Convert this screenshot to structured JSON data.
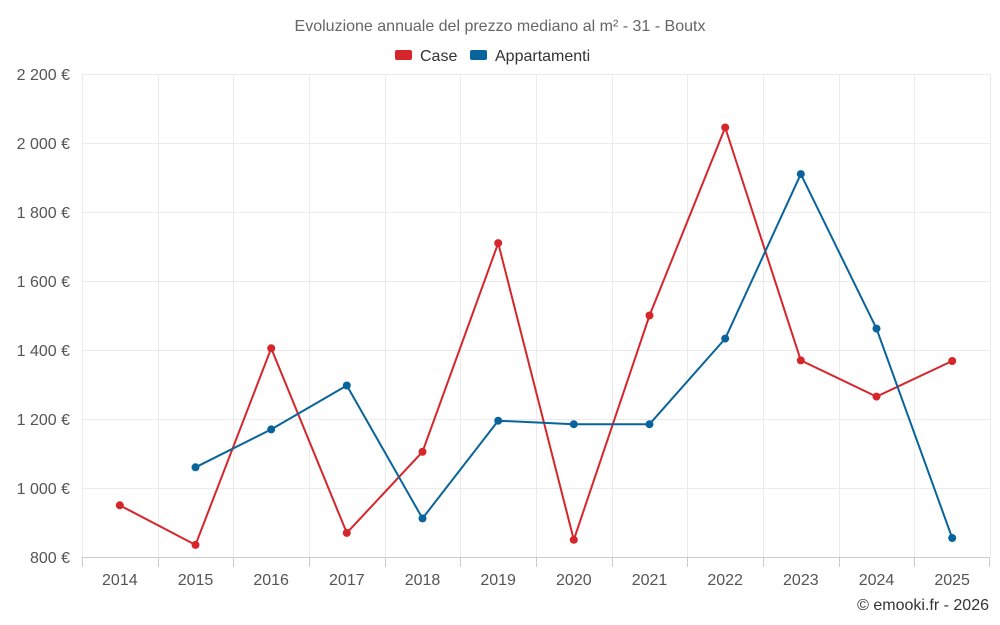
{
  "chart_data": {
    "type": "line",
    "title": "Evoluzione annuale del prezzo mediano al m² - 31 - Boutx",
    "categories": [
      "2014",
      "2015",
      "2016",
      "2017",
      "2018",
      "2019",
      "2020",
      "2021",
      "2022",
      "2023",
      "2024",
      "2025"
    ],
    "y_ticks": [
      800,
      1000,
      1200,
      1400,
      1600,
      1800,
      2000,
      2200
    ],
    "y_tick_labels": [
      "800 €",
      "1 000 €",
      "1 200 €",
      "1 400 €",
      "1 600 €",
      "1 800 €",
      "2 000 €",
      "2 200 €"
    ],
    "ylim": [
      800,
      2200
    ],
    "xlabel": "",
    "ylabel": "",
    "legend_position": "top-center",
    "grid": true,
    "series": [
      {
        "name": "Case",
        "color": "#d7262b",
        "values": [
          950,
          835,
          1405,
          870,
          1105,
          1710,
          850,
          1500,
          2045,
          1370,
          1265,
          1368
        ]
      },
      {
        "name": "Appartamenti",
        "color": "#08649a",
        "values": [
          null,
          1060,
          1170,
          1297,
          912,
          1195,
          1185,
          1185,
          1433,
          1910,
          1462,
          855
        ]
      }
    ]
  },
  "credit": "© emooki.fr - 2026"
}
